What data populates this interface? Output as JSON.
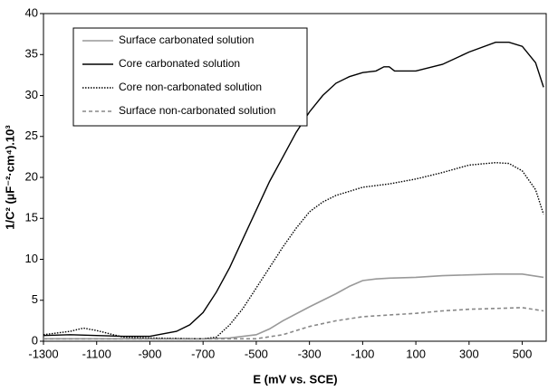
{
  "chart_data": {
    "type": "line",
    "xlabel": "E (mV vs. SCE)",
    "ylabel": "1/C² (µF⁻²·cm⁴).10³",
    "xlim": [
      -1300,
      590
    ],
    "ylim": [
      0,
      40
    ],
    "xticks": [
      -1300,
      -1100,
      -900,
      -700,
      -500,
      -300,
      -100,
      100,
      300,
      500
    ],
    "yticks": [
      0,
      5,
      10,
      15,
      20,
      25,
      30,
      35,
      40
    ],
    "legend": "upper left",
    "series": [
      {
        "name": "Surface carbonated solution",
        "color": "#999999",
        "dash": "solid",
        "x": [
          -1300,
          -700,
          -600,
          -500,
          -450,
          -400,
          -300,
          -200,
          -150,
          -100,
          -50,
          0,
          100,
          200,
          300,
          400,
          500,
          580
        ],
        "values": [
          0.3,
          0.3,
          0.4,
          0.8,
          1.5,
          2.5,
          4.2,
          5.8,
          6.7,
          7.4,
          7.6,
          7.7,
          7.8,
          8,
          8.1,
          8.2,
          8.2,
          7.8
        ]
      },
      {
        "name": "Core carbonated solution",
        "color": "#000000",
        "dash": "solid",
        "x": [
          -1300,
          -1200,
          -1100,
          -1000,
          -900,
          -800,
          -750,
          -700,
          -650,
          -600,
          -550,
          -500,
          -450,
          -400,
          -350,
          -300,
          -250,
          -200,
          -150,
          -100,
          -50,
          -20,
          0,
          20,
          100,
          200,
          300,
          400,
          450,
          500,
          550,
          580
        ],
        "values": [
          0.7,
          0.8,
          0.7,
          0.6,
          0.6,
          1.2,
          2,
          3.5,
          6,
          9,
          12.5,
          16,
          19.5,
          22.5,
          25.5,
          28,
          30,
          31.5,
          32.3,
          32.8,
          33,
          33.5,
          33.5,
          33,
          33,
          33.8,
          35.3,
          36.5,
          36.5,
          36,
          34,
          31
        ]
      },
      {
        "name": "Core non-carbonated solution",
        "color": "#000000",
        "dash": "dotted",
        "x": [
          -1300,
          -1200,
          -1150,
          -1100,
          -1000,
          -900,
          -700,
          -650,
          -600,
          -550,
          -500,
          -450,
          -400,
          -350,
          -300,
          -250,
          -200,
          -150,
          -100,
          0,
          100,
          200,
          300,
          400,
          450,
          500,
          550,
          580
        ],
        "values": [
          0.8,
          1.2,
          1.6,
          1.3,
          0.5,
          0.4,
          0.3,
          0.5,
          2,
          4,
          6.5,
          9,
          11.5,
          13.8,
          15.8,
          17,
          17.8,
          18.3,
          18.8,
          19.2,
          19.8,
          20.6,
          21.5,
          21.8,
          21.7,
          20.8,
          18.5,
          15.5
        ]
      },
      {
        "name": "Surface non-carbonated solution",
        "color": "#888888",
        "dash": "dashed",
        "x": [
          -1300,
          -500,
          -400,
          -300,
          -200,
          -100,
          0,
          100,
          200,
          300,
          400,
          500,
          580
        ],
        "values": [
          0.3,
          0.3,
          0.8,
          1.8,
          2.5,
          3,
          3.2,
          3.4,
          3.7,
          3.9,
          4,
          4.1,
          3.7
        ]
      }
    ]
  }
}
